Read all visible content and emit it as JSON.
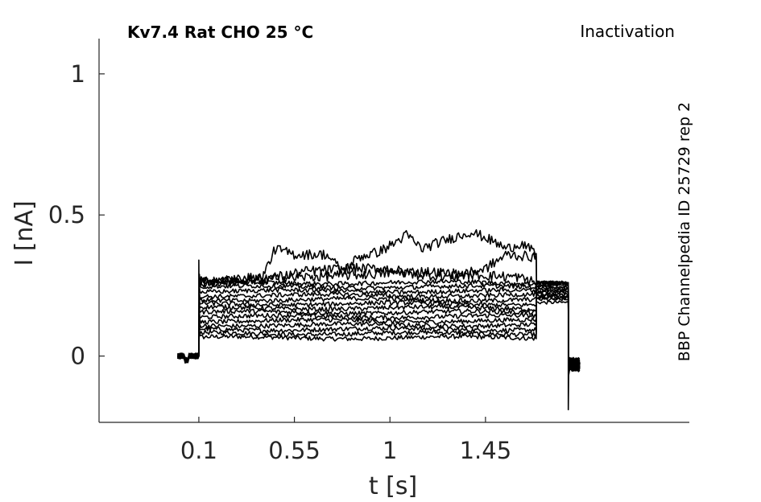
{
  "chart_data": {
    "type": "line",
    "title": "Kv7.4  Rat  CHO  25 °C",
    "protocol_label": "Inactivation",
    "side_label": "BBP Channelpedia ID 25729 rep 2",
    "xlabel": "t [s]",
    "ylabel": "I [nA]",
    "xlim": [
      -0.37,
      2.41
    ],
    "ylim": [
      -0.235,
      1.125
    ],
    "xticks": [
      0.1,
      0.55,
      1,
      1.45
    ],
    "xtick_labels": [
      "0.1",
      "0.55",
      "1",
      "1.45"
    ],
    "yticks": [
      0,
      0.5,
      1
    ],
    "ytick_labels": [
      "0",
      "0.5",
      "1"
    ],
    "grid": false,
    "line_color": "#000000",
    "step": {
      "start": 0.1,
      "end": 1.69,
      "tail_start": 1.69,
      "tail_end": 1.84,
      "pre_start": -0.0
    },
    "series": [
      {
        "steady": 0.065,
        "tail": 0.19
      },
      {
        "steady": 0.08,
        "tail": 0.2
      },
      {
        "steady": 0.095,
        "tail": 0.205
      },
      {
        "steady": 0.11,
        "tail": 0.21
      },
      {
        "steady": 0.125,
        "tail": 0.215
      },
      {
        "steady": 0.14,
        "tail": 0.22
      },
      {
        "steady": 0.155,
        "tail": 0.225
      },
      {
        "steady": 0.17,
        "tail": 0.23
      },
      {
        "steady": 0.185,
        "tail": 0.235
      },
      {
        "steady": 0.2,
        "tail": 0.24
      },
      {
        "steady": 0.215,
        "tail": 0.245
      },
      {
        "steady": 0.23,
        "tail": 0.25
      },
      {
        "steady": 0.245,
        "tail": 0.255
      },
      {
        "steady": 0.26,
        "tail": 0.26
      },
      {
        "steady": 0.265,
        "tail": 0.26,
        "points": [
          [
            0.1,
            0.265
          ],
          [
            0.35,
            0.27
          ],
          [
            0.6,
            0.28
          ],
          [
            0.9,
            0.29
          ],
          [
            1.15,
            0.3
          ],
          [
            1.35,
            0.29
          ],
          [
            1.6,
            0.28
          ],
          [
            1.69,
            0.26
          ]
        ]
      },
      {
        "steady": 0.27,
        "tail": 0.26,
        "points": [
          [
            0.1,
            0.26
          ],
          [
            0.4,
            0.27
          ],
          [
            0.6,
            0.3
          ],
          [
            0.8,
            0.31
          ],
          [
            1.0,
            0.31
          ],
          [
            1.1,
            0.29
          ],
          [
            1.3,
            0.28
          ],
          [
            1.45,
            0.31
          ],
          [
            1.55,
            0.36
          ],
          [
            1.69,
            0.35
          ]
        ]
      },
      {
        "steady": 0.27,
        "tail": 0.26,
        "points": [
          [
            0.1,
            0.26
          ],
          [
            0.4,
            0.28
          ],
          [
            0.46,
            0.38
          ],
          [
            0.55,
            0.36
          ],
          [
            0.7,
            0.36
          ],
          [
            0.78,
            0.3
          ],
          [
            0.85,
            0.35
          ],
          [
            0.95,
            0.37
          ],
          [
            1.02,
            0.4
          ],
          [
            1.08,
            0.43
          ],
          [
            1.15,
            0.38
          ],
          [
            1.22,
            0.4
          ],
          [
            1.3,
            0.42
          ],
          [
            1.38,
            0.44
          ],
          [
            1.45,
            0.42
          ],
          [
            1.55,
            0.38
          ],
          [
            1.62,
            0.4
          ],
          [
            1.69,
            0.36
          ]
        ]
      }
    ]
  }
}
